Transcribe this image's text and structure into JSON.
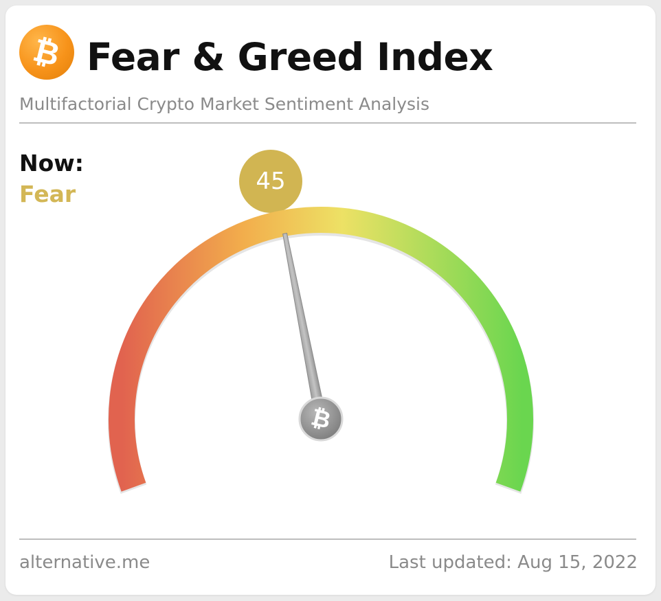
{
  "header": {
    "logo_glyph": "₿",
    "logo_icon": "bitcoin-icon",
    "title": "Fear & Greed Index",
    "subtitle": "Multifactorial Crypto Market Sentiment Analysis"
  },
  "now": {
    "label": "Now:",
    "classification": "Fear",
    "classification_color": "#d3b756"
  },
  "gauge": {
    "value": 45,
    "display_value": "45",
    "min": 0,
    "max": 100,
    "bubble_color": "#d1b552",
    "needle_hub_glyph": "₿",
    "needle_hub_icon": "bitcoin-icon",
    "colors": {
      "low": "#e1634f",
      "mid_low": "#f2ad4c",
      "mid": "#ede165",
      "high": "#6ad64f"
    }
  },
  "footer": {
    "source": "alternative.me",
    "last_updated": "Last updated: Aug 15, 2022"
  }
}
